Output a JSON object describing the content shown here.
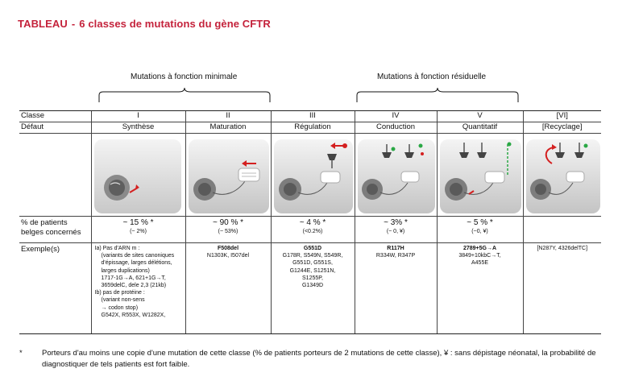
{
  "title": {
    "label": "TABLEAU",
    "separator": "-",
    "text": "6 classes de mutations du gène CFTR"
  },
  "groups": {
    "minimal": "Mutations à fonction minimale",
    "residual": "Mutations à fonction résiduelle"
  },
  "table": {
    "row_headers": {
      "classe": "Classe",
      "defaut": "Défaut",
      "pct_line1": "% de patients",
      "pct_line2": "belges concernés",
      "exemples": "Exemple(s)"
    },
    "columns": [
      {
        "classe": "I",
        "defaut": "Synthèse",
        "pct": "~ 15 % *",
        "pct_sub": "(~ 2%)",
        "examples": [
          {
            "text": "Ia) Pas d'ARN m :",
            "bold": false,
            "indent": false
          },
          {
            "text": "(variants de sites canoniques",
            "bold": false,
            "indent": true
          },
          {
            "text": "d'épissage,  larges délétions,",
            "bold": false,
            "indent": true
          },
          {
            "text": "larges duplications)",
            "bold": false,
            "indent": true
          },
          {
            "text": "1717-1G→A, 621+1G→T,",
            "bold": false,
            "indent": true
          },
          {
            "text": "3659delC, dele 2,3 (21kb)",
            "bold": false,
            "indent": true
          },
          {
            "text": "Ib) pas de protéine :",
            "bold": false,
            "indent": false
          },
          {
            "text": "(variant non-sens",
            "bold": false,
            "indent": true
          },
          {
            "text": "→ codon stop)",
            "bold": false,
            "indent": true
          },
          {
            "text": "G542X, R553X, W1282X,",
            "bold": false,
            "indent": true
          }
        ]
      },
      {
        "classe": "II",
        "defaut": "Maturation",
        "pct": "~ 90 % *",
        "pct_sub": "(~ 53%)",
        "examples": [
          {
            "text": "F508del",
            "bold": true
          },
          {
            "text": "N1303K, I507del",
            "bold": false
          }
        ]
      },
      {
        "classe": "III",
        "defaut": "Régulation",
        "pct": "~ 4 % *",
        "pct_sub": "(<0.2%)",
        "examples": [
          {
            "text": "G551D",
            "bold": true
          },
          {
            "text": "G178R, S549N, S549R,",
            "bold": false
          },
          {
            "text": "G551D, G551S,",
            "bold": false
          },
          {
            "text": "G1244E, S1251N,",
            "bold": false
          },
          {
            "text": "S1255P,",
            "bold": false
          },
          {
            "text": "G1349D",
            "bold": false
          }
        ]
      },
      {
        "classe": "IV",
        "defaut": "Conduction",
        "pct": "~ 3% *",
        "pct_sub": "(~ 0, ¥)",
        "examples": [
          {
            "text": "R117H",
            "bold": true
          },
          {
            "text": "R334W, R347P",
            "bold": false
          }
        ]
      },
      {
        "classe": "V",
        "defaut": "Quantitatif",
        "pct": "~ 5 % *",
        "pct_sub": "(~0, ¥)",
        "examples": [
          {
            "text": "2789+5G→A",
            "bold": true
          },
          {
            "text": "3849+10kbC→T,",
            "bold": false
          },
          {
            "text": "A455E",
            "bold": false
          }
        ]
      },
      {
        "classe": "[VI]",
        "defaut": "[Recyclage]",
        "pct": "",
        "pct_sub": "",
        "examples": [
          {
            "text": "[N287Y, 4326delTC]",
            "bold": false
          }
        ]
      }
    ]
  },
  "footnote": {
    "star": "*",
    "text": "Porteurs d'au moins une copie d'une mutation de cette classe (% de patients porteurs de 2 mutations de cette classe), ¥ : sans dépistage néonatal, la probabilité de diagnostiquer de tels patients est fort faible."
  },
  "colors": {
    "title": "#c4223b",
    "arrow_red": "#d42020",
    "arrow_green": "#2aa845",
    "cell_bg": "#d9d9d9"
  }
}
